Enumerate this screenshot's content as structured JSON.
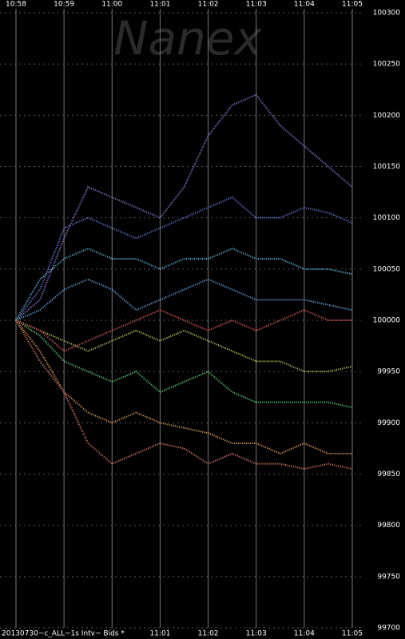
{
  "chart_data": {
    "type": "line",
    "watermark": "Nanex",
    "footer": "20130730~c_ALL~1s Intv~ Bids *",
    "x": [
      658,
      658.5,
      659,
      659.5,
      660,
      660.5,
      661,
      661.5,
      662,
      662.5,
      663,
      663.5,
      664,
      664.5,
      665
    ],
    "xlim": [
      658,
      665
    ],
    "xticks": [
      {
        "value": 658,
        "label": "10:58"
      },
      {
        "value": 659,
        "label": "10:59"
      },
      {
        "value": 660,
        "label": "11:00"
      },
      {
        "value": 661,
        "label": "11:01"
      },
      {
        "value": 662,
        "label": "11:02"
      },
      {
        "value": 663,
        "label": "11:03"
      },
      {
        "value": 664,
        "label": "11:04"
      },
      {
        "value": 665,
        "label": "11:05"
      }
    ],
    "ylim": [
      99700,
      100300
    ],
    "yticks": [
      99700,
      99750,
      99800,
      99850,
      99900,
      99950,
      100000,
      100050,
      100100,
      100150,
      100200,
      100250,
      100300
    ],
    "grid": true,
    "series": [
      {
        "color": "#9b7fe0",
        "values": [
          100000,
          100020,
          100080,
          100130,
          100120,
          100110,
          100100,
          100130,
          100180,
          100210,
          100220,
          100190,
          100170,
          100150,
          100130
        ]
      },
      {
        "color": "#6f7fe8",
        "values": [
          100000,
          100030,
          100090,
          100100,
          100090,
          100080,
          100090,
          100100,
          100110,
          100120,
          100100,
          100100,
          100110,
          100105,
          100095
        ]
      },
      {
        "color": "#5cc8e8",
        "values": [
          100000,
          100040,
          100060,
          100070,
          100060,
          100060,
          100050,
          100060,
          100060,
          100070,
          100060,
          100060,
          100050,
          100050,
          100045
        ]
      },
      {
        "color": "#6ab0f0",
        "values": [
          100000,
          100010,
          100030,
          100040,
          100030,
          100010,
          100020,
          100030,
          100040,
          100030,
          100020,
          100020,
          100020,
          100015,
          100010
        ]
      },
      {
        "color": "#c8e060",
        "values": [
          100000,
          99990,
          99980,
          99970,
          99980,
          99990,
          99980,
          99990,
          99980,
          99970,
          99960,
          99960,
          99950,
          99950,
          99955
        ]
      },
      {
        "color": "#60e080",
        "values": [
          100000,
          99985,
          99960,
          99950,
          99940,
          99950,
          99930,
          99940,
          99950,
          99930,
          99920,
          99920,
          99920,
          99920,
          99915
        ]
      },
      {
        "color": "#f0b060",
        "values": [
          100000,
          99970,
          99930,
          99910,
          99900,
          99910,
          99900,
          99895,
          99890,
          99880,
          99880,
          99870,
          99880,
          99870,
          99870
        ]
      },
      {
        "color": "#f08070",
        "values": [
          100000,
          99960,
          99930,
          99880,
          99860,
          99870,
          99880,
          99875,
          99860,
          99870,
          99860,
          99860,
          99855,
          99860,
          99855
        ]
      },
      {
        "color": "#f06060",
        "values": [
          100000,
          99990,
          99970,
          99980,
          99990,
          100000,
          100010,
          100000,
          99990,
          100000,
          99990,
          100000,
          100010,
          100000,
          100000
        ]
      }
    ]
  }
}
